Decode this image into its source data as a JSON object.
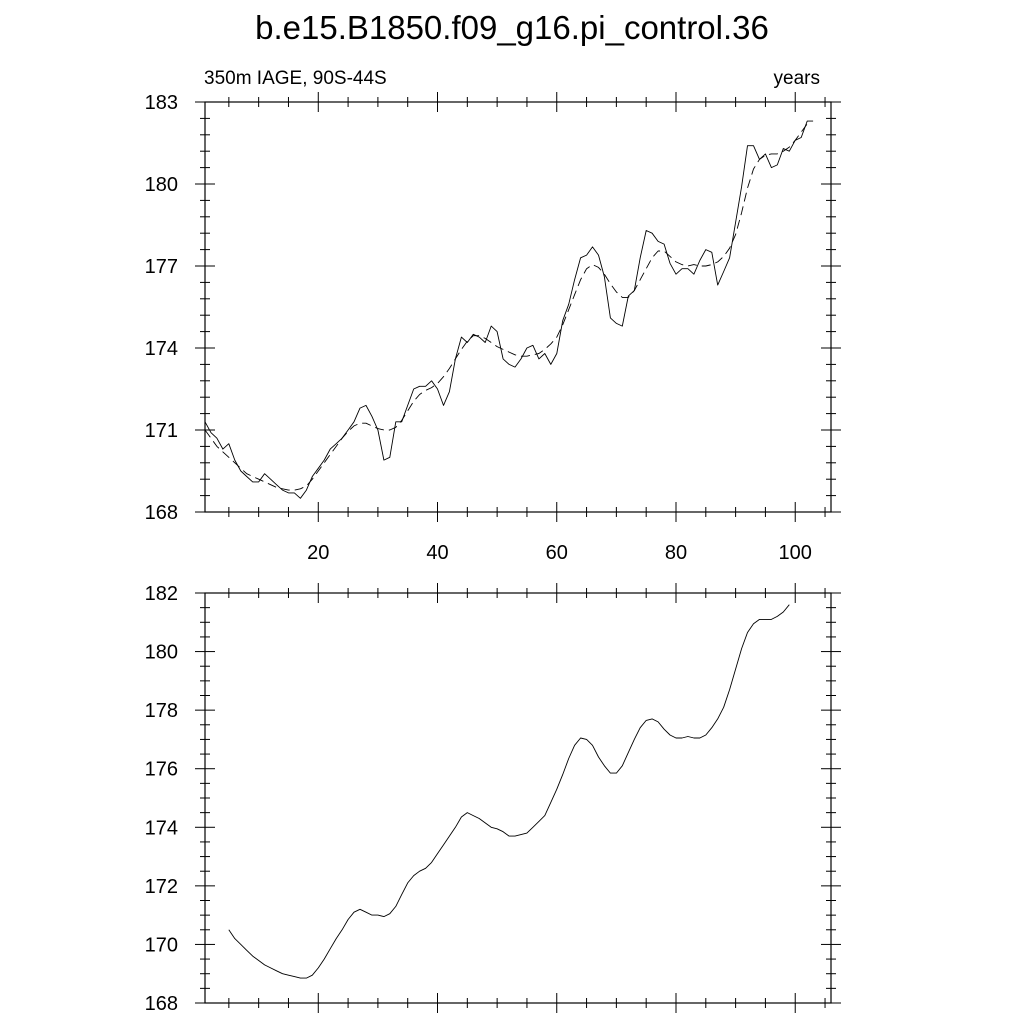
{
  "title": "b.e15.B1850.f09_g16.pi_control.36",
  "chart_data": [
    {
      "type": "line",
      "subtitle_left": "350m IAGE, 90S-44S",
      "subtitle_right": "years",
      "xlim": [
        1,
        106
      ],
      "ylim": [
        168,
        183
      ],
      "x_ticks": [
        20,
        40,
        60,
        80,
        100
      ],
      "y_ticks": [
        168,
        171,
        174,
        177,
        180,
        183
      ],
      "x_start": 1,
      "series": [
        {
          "style": "solid",
          "values": [
            171.3,
            170.9,
            170.7,
            170.3,
            170.5,
            169.9,
            169.5,
            169.3,
            169.1,
            169.1,
            169.4,
            169.2,
            169.0,
            168.8,
            168.7,
            168.7,
            168.5,
            168.8,
            169.3,
            169.6,
            169.9,
            170.3,
            170.5,
            170.7,
            171.0,
            171.3,
            171.8,
            171.9,
            171.5,
            171.0,
            169.9,
            170.0,
            171.3,
            171.3,
            171.9,
            172.5,
            172.6,
            172.6,
            172.8,
            172.5,
            171.9,
            172.4,
            173.6,
            174.4,
            174.2,
            174.5,
            174.4,
            174.2,
            174.8,
            174.6,
            173.6,
            173.4,
            173.3,
            173.6,
            174.0,
            174.1,
            173.6,
            173.8,
            173.4,
            173.8,
            175.0,
            175.6,
            176.5,
            177.3,
            177.4,
            177.7,
            177.4,
            176.6,
            175.1,
            174.9,
            174.8,
            175.9,
            176.1,
            177.3,
            178.3,
            178.2,
            177.9,
            177.8,
            177.1,
            176.7,
            176.9,
            176.9,
            176.7,
            177.2,
            177.6,
            177.5,
            176.3,
            176.8,
            177.3,
            178.6,
            179.9,
            181.4,
            181.4,
            180.9,
            181.1,
            180.6,
            180.7,
            181.3,
            181.2,
            181.6,
            181.7,
            182.3,
            182.3
          ]
        },
        {
          "style": "dashed",
          "values": [
            171.0,
            170.7,
            170.4,
            170.2,
            170.0,
            169.8,
            169.6,
            169.4,
            169.3,
            169.2,
            169.1,
            169.0,
            168.9,
            168.85,
            168.8,
            168.8,
            168.85,
            168.95,
            169.2,
            169.5,
            169.8,
            170.1,
            170.4,
            170.7,
            170.95,
            171.15,
            171.25,
            171.25,
            171.15,
            171.05,
            171.0,
            171.0,
            171.1,
            171.35,
            171.7,
            172.05,
            172.3,
            172.45,
            172.55,
            172.7,
            172.95,
            173.25,
            173.6,
            173.95,
            174.25,
            174.45,
            174.45,
            174.35,
            174.2,
            174.05,
            173.95,
            173.85,
            173.75,
            173.7,
            173.7,
            173.75,
            173.8,
            173.95,
            174.15,
            174.4,
            174.85,
            175.4,
            175.95,
            176.5,
            176.9,
            177.05,
            176.95,
            176.7,
            176.35,
            176.05,
            175.85,
            175.85,
            176.1,
            176.5,
            176.9,
            177.3,
            177.55,
            177.55,
            177.35,
            177.15,
            177.05,
            177.0,
            177.05,
            177.0,
            177.0,
            177.05,
            177.15,
            177.35,
            177.65,
            178.15,
            178.95,
            179.85,
            180.55,
            180.9,
            181.05,
            181.1,
            181.1,
            181.2,
            181.35,
            181.6,
            181.9,
            182.2
          ]
        }
      ]
    },
    {
      "type": "line",
      "xlim": [
        1,
        106
      ],
      "ylim": [
        168,
        182
      ],
      "x_ticks": [
        20,
        40,
        60,
        80,
        100
      ],
      "y_ticks": [
        168,
        170,
        172,
        174,
        176,
        178,
        180,
        182
      ],
      "x_start": 5,
      "series": [
        {
          "style": "solid",
          "values": [
            170.5,
            170.2,
            170.0,
            169.8,
            169.6,
            169.45,
            169.3,
            169.2,
            169.1,
            169.0,
            168.95,
            168.9,
            168.85,
            168.85,
            168.95,
            169.2,
            169.5,
            169.85,
            170.2,
            170.5,
            170.85,
            171.1,
            171.2,
            171.1,
            171.0,
            171.0,
            170.95,
            171.05,
            171.3,
            171.7,
            172.1,
            172.35,
            172.5,
            172.6,
            172.8,
            173.1,
            173.4,
            173.7,
            174.0,
            174.35,
            174.5,
            174.4,
            174.3,
            174.15,
            174.0,
            173.95,
            173.85,
            173.7,
            173.7,
            173.75,
            173.8,
            174.0,
            174.2,
            174.4,
            174.85,
            175.3,
            175.8,
            176.35,
            176.8,
            177.05,
            177.0,
            176.8,
            176.4,
            176.1,
            175.85,
            175.85,
            176.1,
            176.55,
            177.0,
            177.4,
            177.65,
            177.7,
            177.6,
            177.35,
            177.15,
            177.05,
            177.05,
            177.1,
            177.05,
            177.05,
            177.15,
            177.4,
            177.7,
            178.1,
            178.7,
            179.4,
            180.1,
            180.65,
            180.95,
            181.1,
            181.1,
            181.1,
            181.2,
            181.35,
            181.6
          ]
        }
      ]
    }
  ]
}
